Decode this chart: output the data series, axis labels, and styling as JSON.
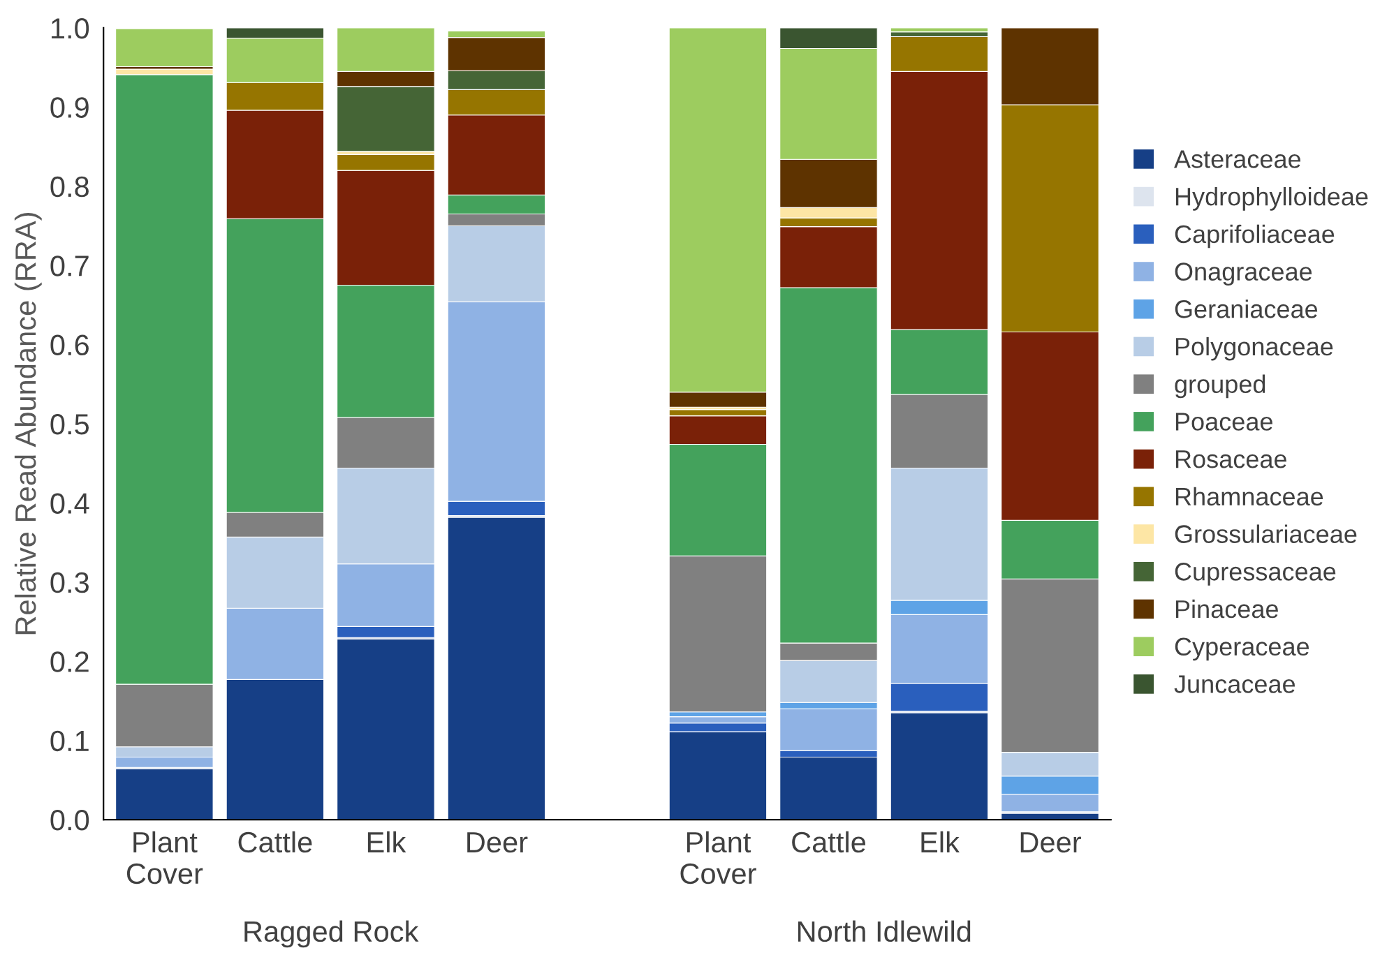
{
  "chart_data": {
    "type": "bar",
    "stacked": true,
    "ylabel": "Relative Read Abundance (RRA)",
    "categories": [
      "Plant Cover",
      "Cattle",
      "Elk",
      "Deer",
      null,
      "Plant Cover",
      "Cattle",
      "Elk",
      "Deer"
    ],
    "annotations": [
      "Ragged Rock",
      "North Idlewild"
    ],
    "ylim": [
      0,
      1.0
    ],
    "yticks": [
      {
        "value": 0,
        "label": "0.0"
      },
      0.1,
      0.2,
      0.3,
      0.4,
      0.5,
      0.6,
      0.7,
      0.8,
      0.9,
      {
        "value": 1,
        "label": "1.0"
      }
    ],
    "grid": false,
    "legend": "right",
    "series": [
      {
        "name": "Asteraceae",
        "color": "#163f86",
        "values": [
          0.064,
          0.177,
          0.228,
          0.382,
          null,
          0.111,
          0.079,
          0.135,
          0.008
        ]
      },
      {
        "name": "Hydrophylloideae",
        "color": "#dde4ee",
        "values": [
          0.002,
          0,
          0.002,
          0.002,
          null,
          0,
          0,
          0.002,
          0.002
        ]
      },
      {
        "name": "Caprifoliaceae",
        "color": "#2a5fbd",
        "values": [
          0,
          0,
          0.014,
          0.018,
          null,
          0.011,
          0.008,
          0.035,
          0
        ]
      },
      {
        "name": "Onagraceae",
        "color": "#8fb2e4",
        "values": [
          0.013,
          0.09,
          0.079,
          0.252,
          null,
          0.008,
          0.053,
          0.087,
          0.022
        ]
      },
      {
        "name": "Geraniaceae",
        "color": "#5ea3e6",
        "values": [
          0,
          0,
          0,
          null,
          null,
          0.006,
          0.008,
          0.018,
          0.023
        ]
      },
      {
        "name": "Polygonaceae",
        "color": "#b8cde6",
        "values": [
          0.013,
          0.09,
          0.121,
          0.096,
          null,
          0,
          0.053,
          0.167,
          0.03
        ]
      },
      {
        "name": "grouped",
        "color": "#808080",
        "values": [
          0.079,
          0.031,
          0.064,
          0.015,
          null,
          0.197,
          0.022,
          0.093,
          0.219
        ]
      },
      {
        "name": "Poaceae",
        "color": "#44a25c",
        "values": [
          0.77,
          0.371,
          0.167,
          0.024,
          null,
          0.141,
          0.449,
          0.082,
          0.074
        ]
      },
      {
        "name": "Rosaceae",
        "color": "#7a2108",
        "values": [
          0,
          0.137,
          0.145,
          0.101,
          null,
          0.036,
          0.077,
          0.326,
          0.238
        ]
      },
      {
        "name": "Rhamnaceae",
        "color": "#967500",
        "values": [
          0,
          0.035,
          0.02,
          0.032,
          null,
          0.008,
          0.011,
          0.044,
          0.287
        ]
      },
      {
        "name": "Grossulariaceae",
        "color": "#fde6a5",
        "values": [
          0.007,
          0,
          0.004,
          null,
          null,
          0.003,
          0.013,
          0,
          0
        ]
      },
      {
        "name": "Cupressaceae",
        "color": "#456536",
        "values": [
          0,
          0,
          0.082,
          0.024,
          null,
          0,
          0,
          0.006,
          0
        ]
      },
      {
        "name": "Pinaceae",
        "color": "#5e3300",
        "values": [
          0.003,
          0,
          0.019,
          0.042,
          null,
          0.019,
          0.061,
          0,
          0.097
        ]
      },
      {
        "name": "Cyperaceae",
        "color": "#9dcc5f",
        "values": [
          0.048,
          0.056,
          0.055,
          0.008,
          null,
          0.46,
          0.14,
          0.005,
          0
        ]
      },
      {
        "name": "Juncaceae",
        "color": "#3a5530",
        "values": [
          0,
          0.013,
          0,
          0,
          null,
          0,
          0.026,
          0,
          0
        ]
      }
    ]
  }
}
